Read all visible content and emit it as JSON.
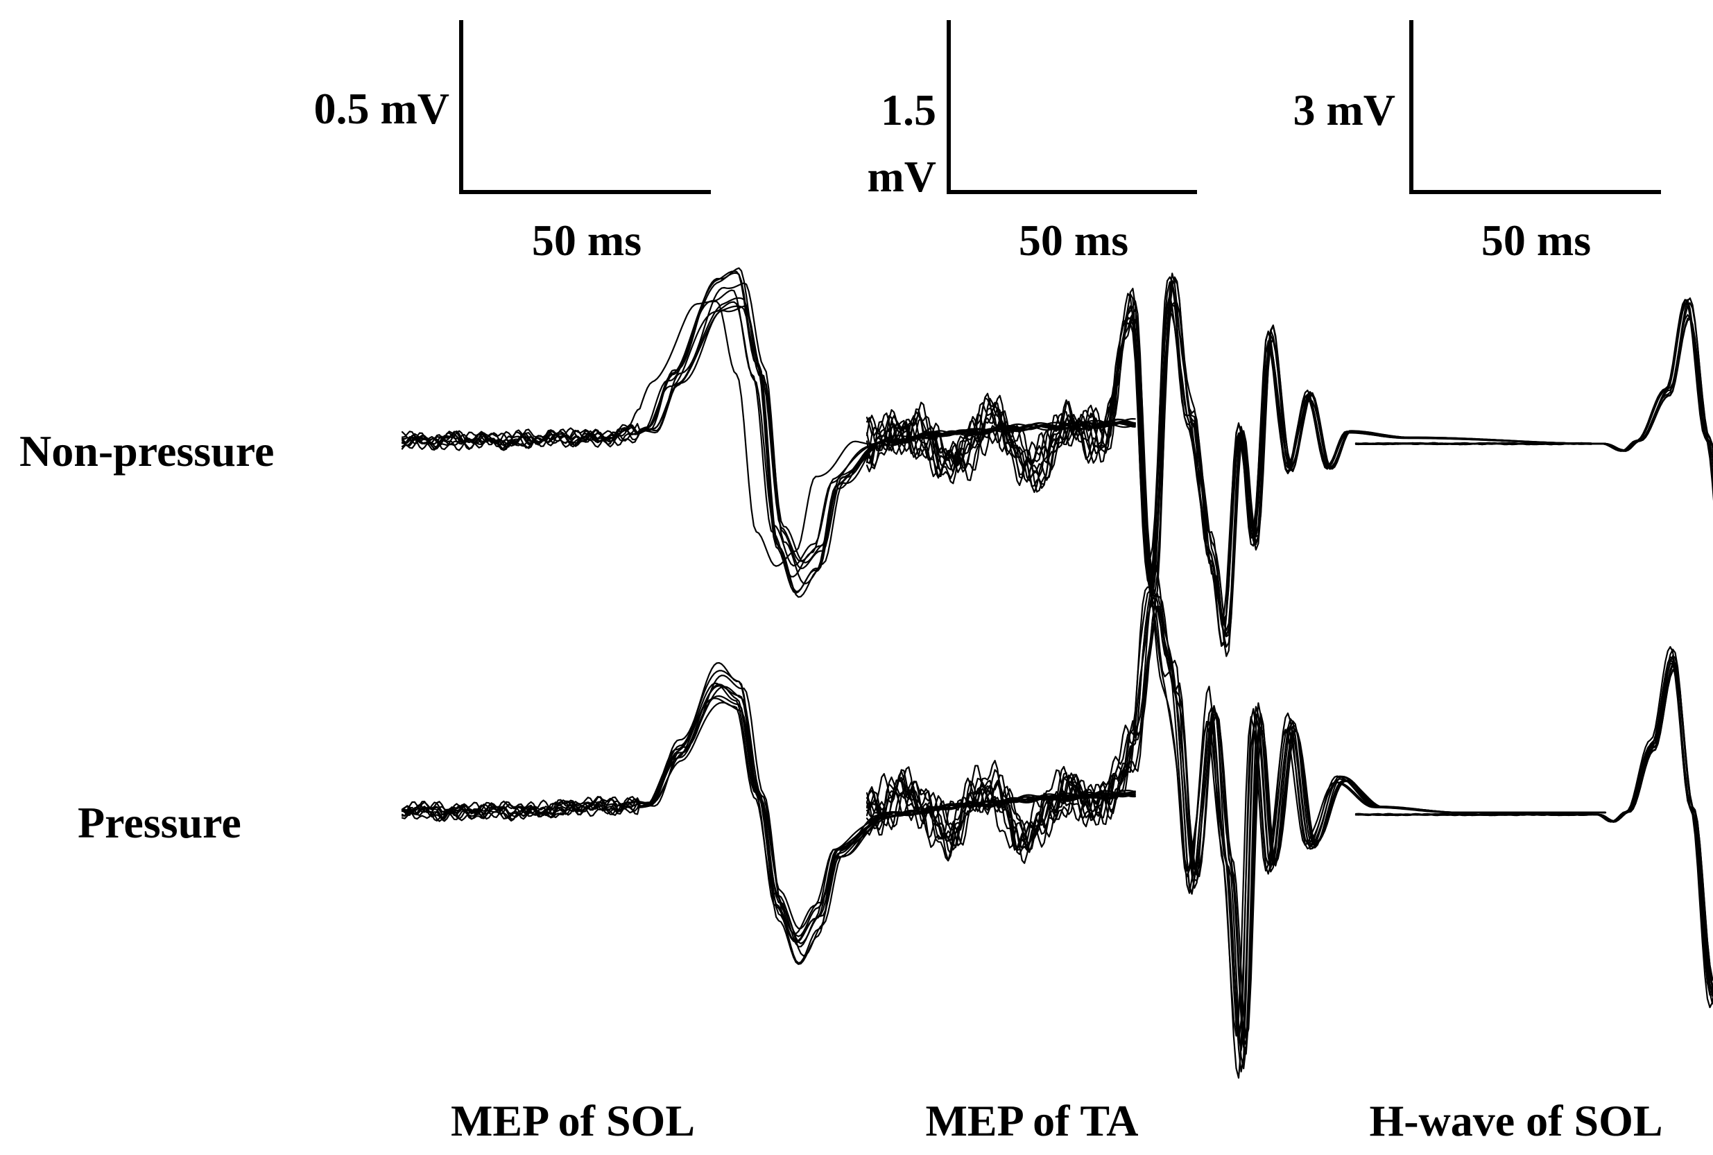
{
  "chart_data": {
    "type": "line",
    "title": "",
    "row_labels": [
      "Non-pressure",
      "Pressure"
    ],
    "panels": [
      {
        "name": "MEP of SOL",
        "scale_bar": {
          "y_label": "0.5 mV",
          "y_label_lines": [
            "0.5 mV"
          ],
          "x_label": "50 ms"
        },
        "conditions": [
          {
            "name": "Non-pressure",
            "traces": 10,
            "x_range_ms": [
              0,
              148
            ],
            "waveform": [
              [
                0,
                0
              ],
              [
                20,
                0
              ],
              [
                42,
                0.01
              ],
              [
                50,
                0.03
              ],
              [
                55,
                0.18
              ],
              [
                64,
                0.42
              ],
              [
                68,
                0.44
              ],
              [
                72,
                0.2
              ],
              [
                76,
                -0.28
              ],
              [
                80,
                -0.4
              ],
              [
                84,
                -0.34
              ],
              [
                88,
                -0.12
              ],
              [
                96,
                -0.01
              ],
              [
                110,
                0.02
              ],
              [
                130,
                0.04
              ],
              [
                148,
                0.05
              ]
            ]
          },
          {
            "name": "Pressure",
            "traces": 10,
            "x_range_ms": [
              0,
              148
            ],
            "waveform": [
              [
                0,
                0
              ],
              [
                20,
                0
              ],
              [
                50,
                0.02
              ],
              [
                56,
                0.18
              ],
              [
                64,
                0.38
              ],
              [
                68,
                0.34
              ],
              [
                72,
                0.05
              ],
              [
                76,
                -0.28
              ],
              [
                80,
                -0.4
              ],
              [
                84,
                -0.32
              ],
              [
                88,
                -0.12
              ],
              [
                98,
                -0.01
              ],
              [
                116,
                0.02
              ],
              [
                130,
                0.04
              ],
              [
                148,
                0.05
              ]
            ]
          }
        ]
      },
      {
        "name": "MEP of TA",
        "scale_bar": {
          "y_label": "1.5 mV",
          "y_label_lines": [
            "1.5",
            "mV"
          ],
          "x_label": "50 ms"
        },
        "conditions": [
          {
            "name": "Non-pressure",
            "traces": 10,
            "x_range_ms": [
              0,
              150
            ],
            "waveform": [
              [
                0,
                0
              ],
              [
                10,
                0.1
              ],
              [
                18,
                -0.15
              ],
              [
                26,
                0.2
              ],
              [
                34,
                -0.2
              ],
              [
                42,
                0.15
              ],
              [
                48,
                0.05
              ],
              [
                54,
                1.1
              ],
              [
                58,
                -1.2
              ],
              [
                62,
                1.3
              ],
              [
                66,
                0.2
              ],
              [
                70,
                -0.9
              ],
              [
                73,
                -1.6
              ],
              [
                76,
                0.1
              ],
              [
                79,
                -0.8
              ],
              [
                82,
                0.9
              ],
              [
                86,
                -0.2
              ],
              [
                90,
                0.4
              ],
              [
                94,
                -0.2
              ],
              [
                98,
                0.1
              ],
              [
                110,
                0.05
              ],
              [
                150,
                0
              ]
            ]
          },
          {
            "name": "Pressure",
            "traces": 10,
            "x_range_ms": [
              0,
              150
            ],
            "waveform": [
              [
                0,
                0
              ],
              [
                8,
                0.2
              ],
              [
                16,
                -0.2
              ],
              [
                24,
                0.25
              ],
              [
                32,
                -0.25
              ],
              [
                40,
                0.2
              ],
              [
                48,
                0.05
              ],
              [
                54,
                0.6
              ],
              [
                58,
                2.0
              ],
              [
                62,
                1.1
              ],
              [
                66,
                -0.6
              ],
              [
                70,
                0.9
              ],
              [
                73,
                -0.4
              ],
              [
                76,
                -2.2
              ],
              [
                79,
                0.9
              ],
              [
                82,
                -0.5
              ],
              [
                86,
                0.8
              ],
              [
                90,
                -0.3
              ],
              [
                96,
                0.3
              ],
              [
                104,
                0.05
              ],
              [
                120,
                0
              ],
              [
                150,
                0
              ]
            ]
          }
        ]
      },
      {
        "name": "H-wave of SOL",
        "scale_bar": {
          "y_label": "3 mV",
          "y_label_lines": [
            "3 mV"
          ],
          "x_label": "50 ms"
        },
        "conditions": [
          {
            "name": "Non-pressure",
            "traces": 10,
            "x_range_ms": [
              0,
              135
            ],
            "waveform": [
              [
                0,
                0
              ],
              [
                50,
                0
              ],
              [
                54,
                -0.12
              ],
              [
                57,
                0.05
              ],
              [
                63,
                0.9
              ],
              [
                67,
                2.35
              ],
              [
                71,
                0.1
              ],
              [
                75,
                -2.6
              ],
              [
                78,
                -0.5
              ],
              [
                84,
                -0.1
              ],
              [
                100,
                0
              ],
              [
                135,
                0
              ]
            ]
          },
          {
            "name": "Pressure",
            "traces": 10,
            "x_range_ms": [
              0,
              125
            ],
            "waveform": [
              [
                0,
                0
              ],
              [
                49,
                0
              ],
              [
                52,
                -0.12
              ],
              [
                55,
                0.05
              ],
              [
                60,
                1.2
              ],
              [
                64,
                2.7
              ],
              [
                68,
                0.1
              ],
              [
                72,
                -3.1
              ],
              [
                76,
                -0.5
              ],
              [
                82,
                -0.2
              ],
              [
                100,
                0
              ],
              [
                125,
                0.05
              ]
            ]
          }
        ]
      }
    ]
  }
}
